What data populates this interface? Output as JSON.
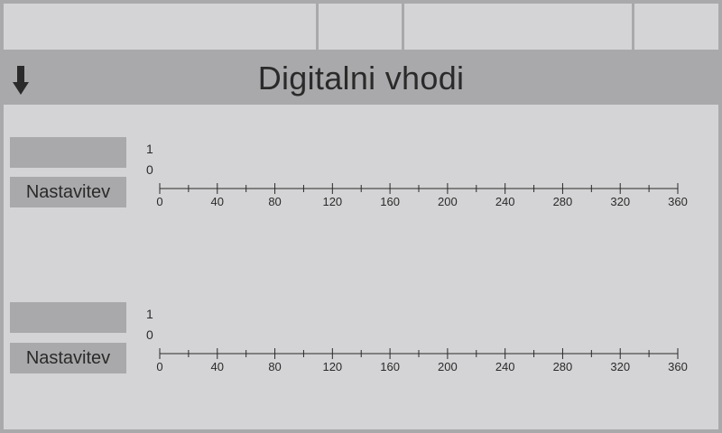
{
  "header": {
    "title": "Digitalni vhodi",
    "back_icon": "down-arrow-icon"
  },
  "topbar": {
    "cells": [
      "",
      "",
      "",
      ""
    ]
  },
  "channels": [
    {
      "value": "",
      "settings_label": "Nastavitev",
      "level_high": "1",
      "level_low": "0",
      "axis": {
        "min": 0,
        "max": 360,
        "major_step": 40,
        "minor_step": 20,
        "tick_labels": [
          "0",
          "40",
          "80",
          "120",
          "160",
          "200",
          "240",
          "280",
          "320",
          "360"
        ]
      }
    },
    {
      "value": "",
      "settings_label": "Nastavitev",
      "level_high": "1",
      "level_low": "0",
      "axis": {
        "min": 0,
        "max": 360,
        "major_step": 40,
        "minor_step": 20,
        "tick_labels": [
          "0",
          "40",
          "80",
          "120",
          "160",
          "200",
          "240",
          "280",
          "320",
          "360"
        ]
      }
    }
  ],
  "colors": {
    "background": "#d4d4d6",
    "panel": "#a9a9ab",
    "text": "#2a2a2a"
  }
}
